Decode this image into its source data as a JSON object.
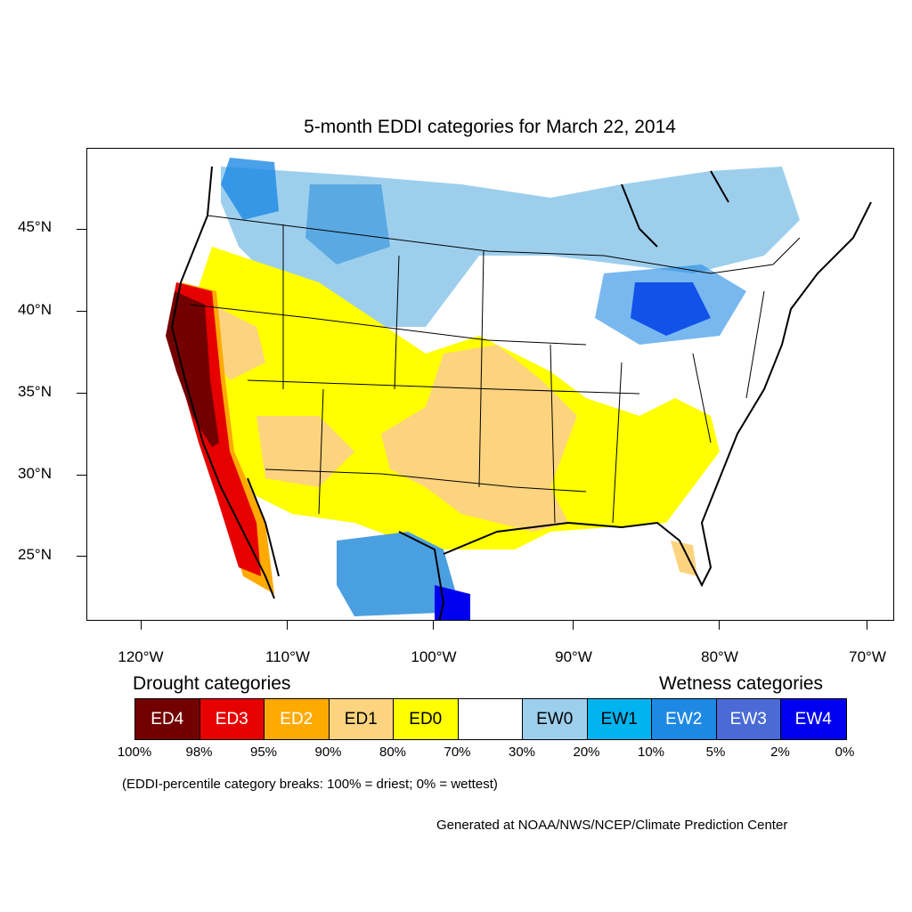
{
  "title": "5-month EDDI categories for March 22, 2014",
  "lat_labels": [
    "45°N",
    "40°N",
    "35°N",
    "30°N",
    "25°N"
  ],
  "lon_labels": [
    "120°W",
    "110°W",
    "100°W",
    "90°W",
    "80°W",
    "70°W"
  ],
  "legend": {
    "drought_heading": "Drought categories",
    "wetness_heading": "Wetness categories",
    "categories": [
      {
        "label": "ED4",
        "color": "#730000",
        "text_color": "#ffffff"
      },
      {
        "label": "ED3",
        "color": "#e60000",
        "text_color": "#ffffff"
      },
      {
        "label": "ED2",
        "color": "#ffaa00",
        "text_color": "#ffffff"
      },
      {
        "label": "ED1",
        "color": "#fcd37f",
        "text_color": "#000000"
      },
      {
        "label": "ED0",
        "color": "#ffff00",
        "text_color": "#000000"
      },
      {
        "label": "",
        "color": "#ffffff",
        "text_color": "#000000"
      },
      {
        "label": "EW0",
        "color": "#9dcfed",
        "text_color": "#000000"
      },
      {
        "label": "EW1",
        "color": "#00b4f0",
        "text_color": "#000000"
      },
      {
        "label": "EW2",
        "color": "#1e88e5",
        "text_color": "#ffffff"
      },
      {
        "label": "EW3",
        "color": "#4a6bd6",
        "text_color": "#ffffff"
      },
      {
        "label": "EW4",
        "color": "#0000f0",
        "text_color": "#ffffff"
      }
    ],
    "percentiles": [
      "100%",
      "98%",
      "95%",
      "90%",
      "80%",
      "70%",
      "30%",
      "20%",
      "10%",
      "5%",
      "2%",
      "0%"
    ]
  },
  "note": "(EDDI-percentile category breaks: 100% = driest; 0% = wettest)",
  "credit": "Generated at NOAA/NWS/NCEP/Climate Prediction Center"
}
